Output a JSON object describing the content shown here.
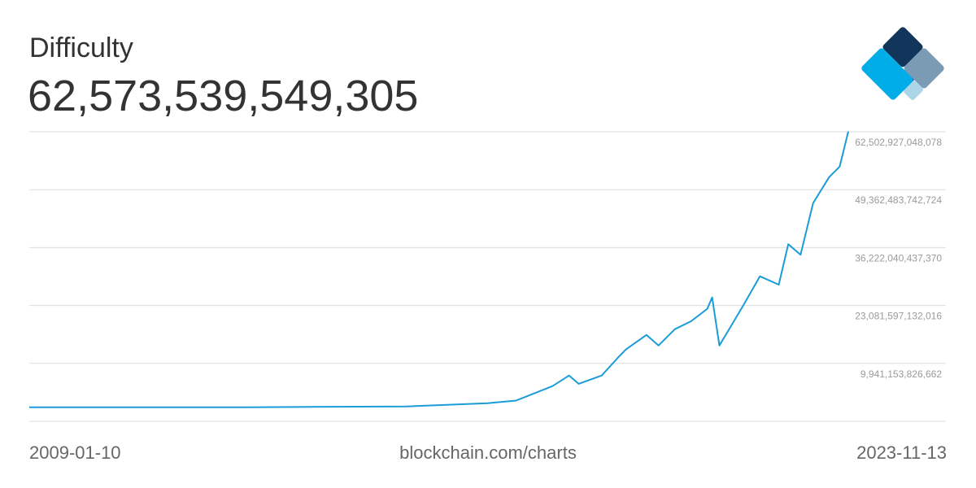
{
  "chart_data": {
    "type": "line",
    "title": "Difficulty",
    "subtitle": "62,573,539,549,305",
    "source": "blockchain.com/charts",
    "color": "#1b9cd8",
    "grid": true,
    "xlim": [
      "2009-01-10",
      "2023-11-13"
    ],
    "x": [
      "2009-01-10",
      "2013-01-01",
      "2015-11-10",
      "2017-05-01",
      "2017-11-06",
      "2018-01-25",
      "2018-07-05",
      "2018-10-22",
      "2018-12-25",
      "2019-05-26",
      "2019-09-09",
      "2019-11-02",
      "2020-03-17",
      "2020-06-05",
      "2020-09-21",
      "2021-01-06",
      "2021-04-23",
      "2021-05-26",
      "2021-07-13",
      "2021-10-01",
      "2021-12-20",
      "2022-04-07",
      "2022-08-10",
      "2022-10-12",
      "2023-01-01",
      "2023-03-25",
      "2023-07-09",
      "2023-09-17",
      "2023-11-13"
    ],
    "values": [
      1,
      3300000,
      180000000000,
      900000000000,
      1500000000000,
      2600000000000,
      4800000000000,
      7200000000000,
      5300000000000,
      7200000000000,
      11200000000000,
      13100000000000,
      16400000000000,
      14000000000000,
      17700000000000,
      19500000000000,
      22300000000000,
      24900000000000,
      14000000000000,
      18600000000000,
      23200000000000,
      29700000000000,
      27800000000000,
      37000000000000,
      34600000000000,
      46300000000000,
      52200000000000,
      54600000000000,
      62573539549305
    ],
    "ylim": [
      -3199289478692,
      62502927048078
    ],
    "yticks": [
      {
        "value": 9941153826662,
        "label": "9,941,153,826,662"
      },
      {
        "value": 23081597132016,
        "label": "23,081,597,132,016"
      },
      {
        "value": 36222040437370,
        "label": "36,222,040,437,370"
      },
      {
        "value": 49362483742724,
        "label": "49,362,483,742,724"
      },
      {
        "value": 62502927048078,
        "label": "62,502,927,048,078"
      }
    ]
  }
}
